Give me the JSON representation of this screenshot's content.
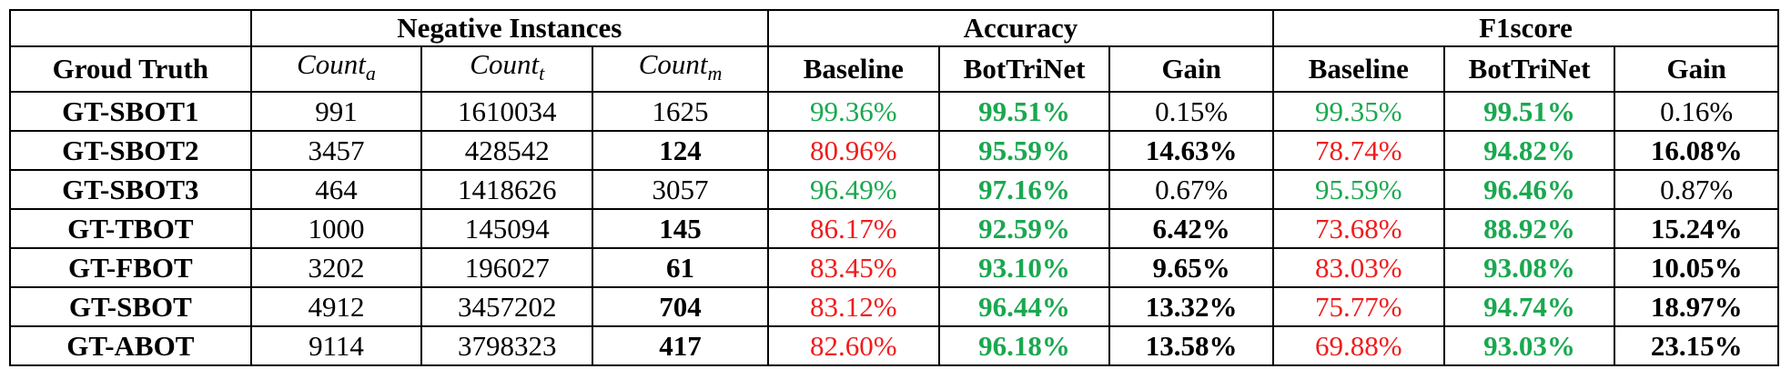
{
  "header": {
    "groups": [
      "Negative Instances",
      "Accuracy",
      "F1score"
    ],
    "columns": {
      "ground_truth": "Groud Truth",
      "count_a": {
        "base": "Count",
        "sub": "a"
      },
      "count_t": {
        "base": "Count",
        "sub": "t"
      },
      "count_m": {
        "base": "Count",
        "sub": "m"
      },
      "acc_baseline": "Baseline",
      "acc_bottrinet": "BotTriNet",
      "acc_gain": "Gain",
      "f1_baseline": "Baseline",
      "f1_bottrinet": "BotTriNet",
      "f1_gain": "Gain"
    }
  },
  "colors": {
    "good": "#1aa84f",
    "bad": "#f01c1c"
  },
  "rows": [
    {
      "gt": "GT-SBOT1",
      "count_a": "991",
      "count_t": "1610034",
      "count_m": "1625",
      "count_m_bold": false,
      "acc_base": "99.36%",
      "acc_base_color": "good",
      "acc_bot": "99.51%",
      "acc_gain": "0.15%",
      "acc_gain_bold": false,
      "f1_base": "99.35%",
      "f1_base_color": "good",
      "f1_bot": "99.51%",
      "f1_gain": "0.16%",
      "f1_gain_bold": false
    },
    {
      "gt": "GT-SBOT2",
      "count_a": "3457",
      "count_t": "428542",
      "count_m": "124",
      "count_m_bold": true,
      "acc_base": "80.96%",
      "acc_base_color": "bad",
      "acc_bot": "95.59%",
      "acc_gain": "14.63%",
      "acc_gain_bold": true,
      "f1_base": "78.74%",
      "f1_base_color": "bad",
      "f1_bot": "94.82%",
      "f1_gain": "16.08%",
      "f1_gain_bold": true
    },
    {
      "gt": "GT-SBOT3",
      "count_a": "464",
      "count_t": "1418626",
      "count_m": "3057",
      "count_m_bold": false,
      "acc_base": "96.49%",
      "acc_base_color": "good",
      "acc_bot": "97.16%",
      "acc_gain": "0.67%",
      "acc_gain_bold": false,
      "f1_base": "95.59%",
      "f1_base_color": "good",
      "f1_bot": "96.46%",
      "f1_gain": "0.87%",
      "f1_gain_bold": false
    },
    {
      "gt": "GT-TBOT",
      "count_a": "1000",
      "count_t": "145094",
      "count_m": "145",
      "count_m_bold": true,
      "acc_base": "86.17%",
      "acc_base_color": "bad",
      "acc_bot": "92.59%",
      "acc_gain": "6.42%",
      "acc_gain_bold": true,
      "f1_base": "73.68%",
      "f1_base_color": "bad",
      "f1_bot": "88.92%",
      "f1_gain": "15.24%",
      "f1_gain_bold": true
    },
    {
      "gt": "GT-FBOT",
      "count_a": "3202",
      "count_t": "196027",
      "count_m": "61",
      "count_m_bold": true,
      "acc_base": "83.45%",
      "acc_base_color": "bad",
      "acc_bot": "93.10%",
      "acc_gain": "9.65%",
      "acc_gain_bold": true,
      "f1_base": "83.03%",
      "f1_base_color": "bad",
      "f1_bot": "93.08%",
      "f1_gain": "10.05%",
      "f1_gain_bold": true
    },
    {
      "gt": "GT-SBOT",
      "count_a": "4912",
      "count_t": "3457202",
      "count_m": "704",
      "count_m_bold": true,
      "acc_base": "83.12%",
      "acc_base_color": "bad",
      "acc_bot": "96.44%",
      "acc_gain": "13.32%",
      "acc_gain_bold": true,
      "f1_base": "75.77%",
      "f1_base_color": "bad",
      "f1_bot": "94.74%",
      "f1_gain": "18.97%",
      "f1_gain_bold": true
    },
    {
      "gt": "GT-ABOT",
      "count_a": "9114",
      "count_t": "3798323",
      "count_m": "417",
      "count_m_bold": true,
      "acc_base": "82.60%",
      "acc_base_color": "bad",
      "acc_bot": "96.18%",
      "acc_gain": "13.58%",
      "acc_gain_bold": true,
      "f1_base": "69.88%",
      "f1_base_color": "bad",
      "f1_bot": "93.03%",
      "f1_gain": "23.15%",
      "f1_gain_bold": true
    }
  ]
}
